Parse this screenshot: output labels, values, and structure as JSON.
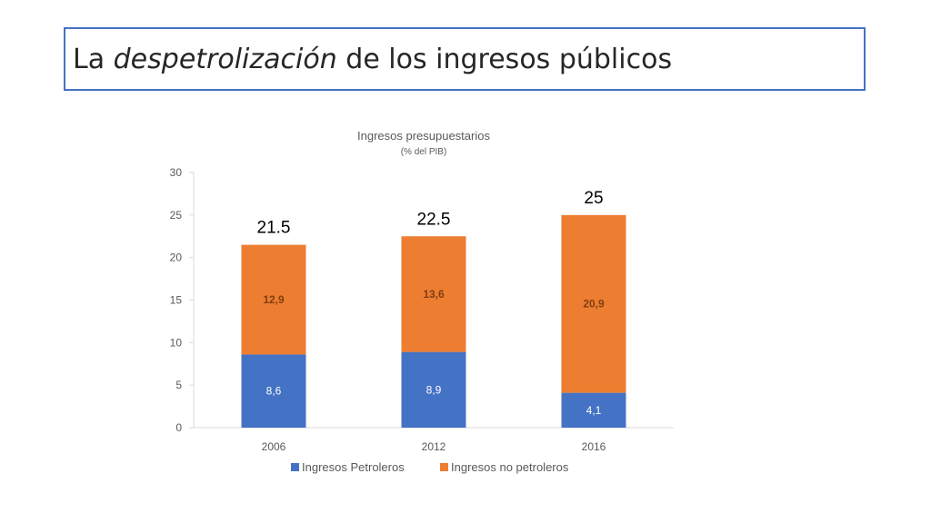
{
  "slide": {
    "title_prefix": "La ",
    "title_italic": "despetrolización",
    "title_suffix": " de los ingresos públicos"
  },
  "chart_data": {
    "type": "bar",
    "stacked": true,
    "title": "Ingresos presupuestarios",
    "subtitle": "(% del PIB)",
    "xlabel": "",
    "ylabel": "",
    "categories": [
      "2006",
      "2012",
      "2016"
    ],
    "ylim": [
      0,
      30
    ],
    "yticks": [
      0,
      5,
      10,
      15,
      20,
      25,
      30
    ],
    "grid": false,
    "legend_position": "bottom",
    "series": [
      {
        "name": "Ingresos Petroleros",
        "values": [
          8.6,
          8.9,
          4.1
        ],
        "labels": [
          "8,6",
          "8,9",
          "4,1"
        ],
        "color": "#4472c4",
        "label_color": "#ffffff"
      },
      {
        "name": "Ingresos no petroleros",
        "values": [
          12.9,
          13.6,
          20.9
        ],
        "labels": [
          "12,9",
          "13,6",
          "20,9"
        ],
        "color": "#ed7d31",
        "label_color": "#7f3f10"
      }
    ],
    "totals": [
      "21.5",
      "22.5",
      "25"
    ]
  }
}
